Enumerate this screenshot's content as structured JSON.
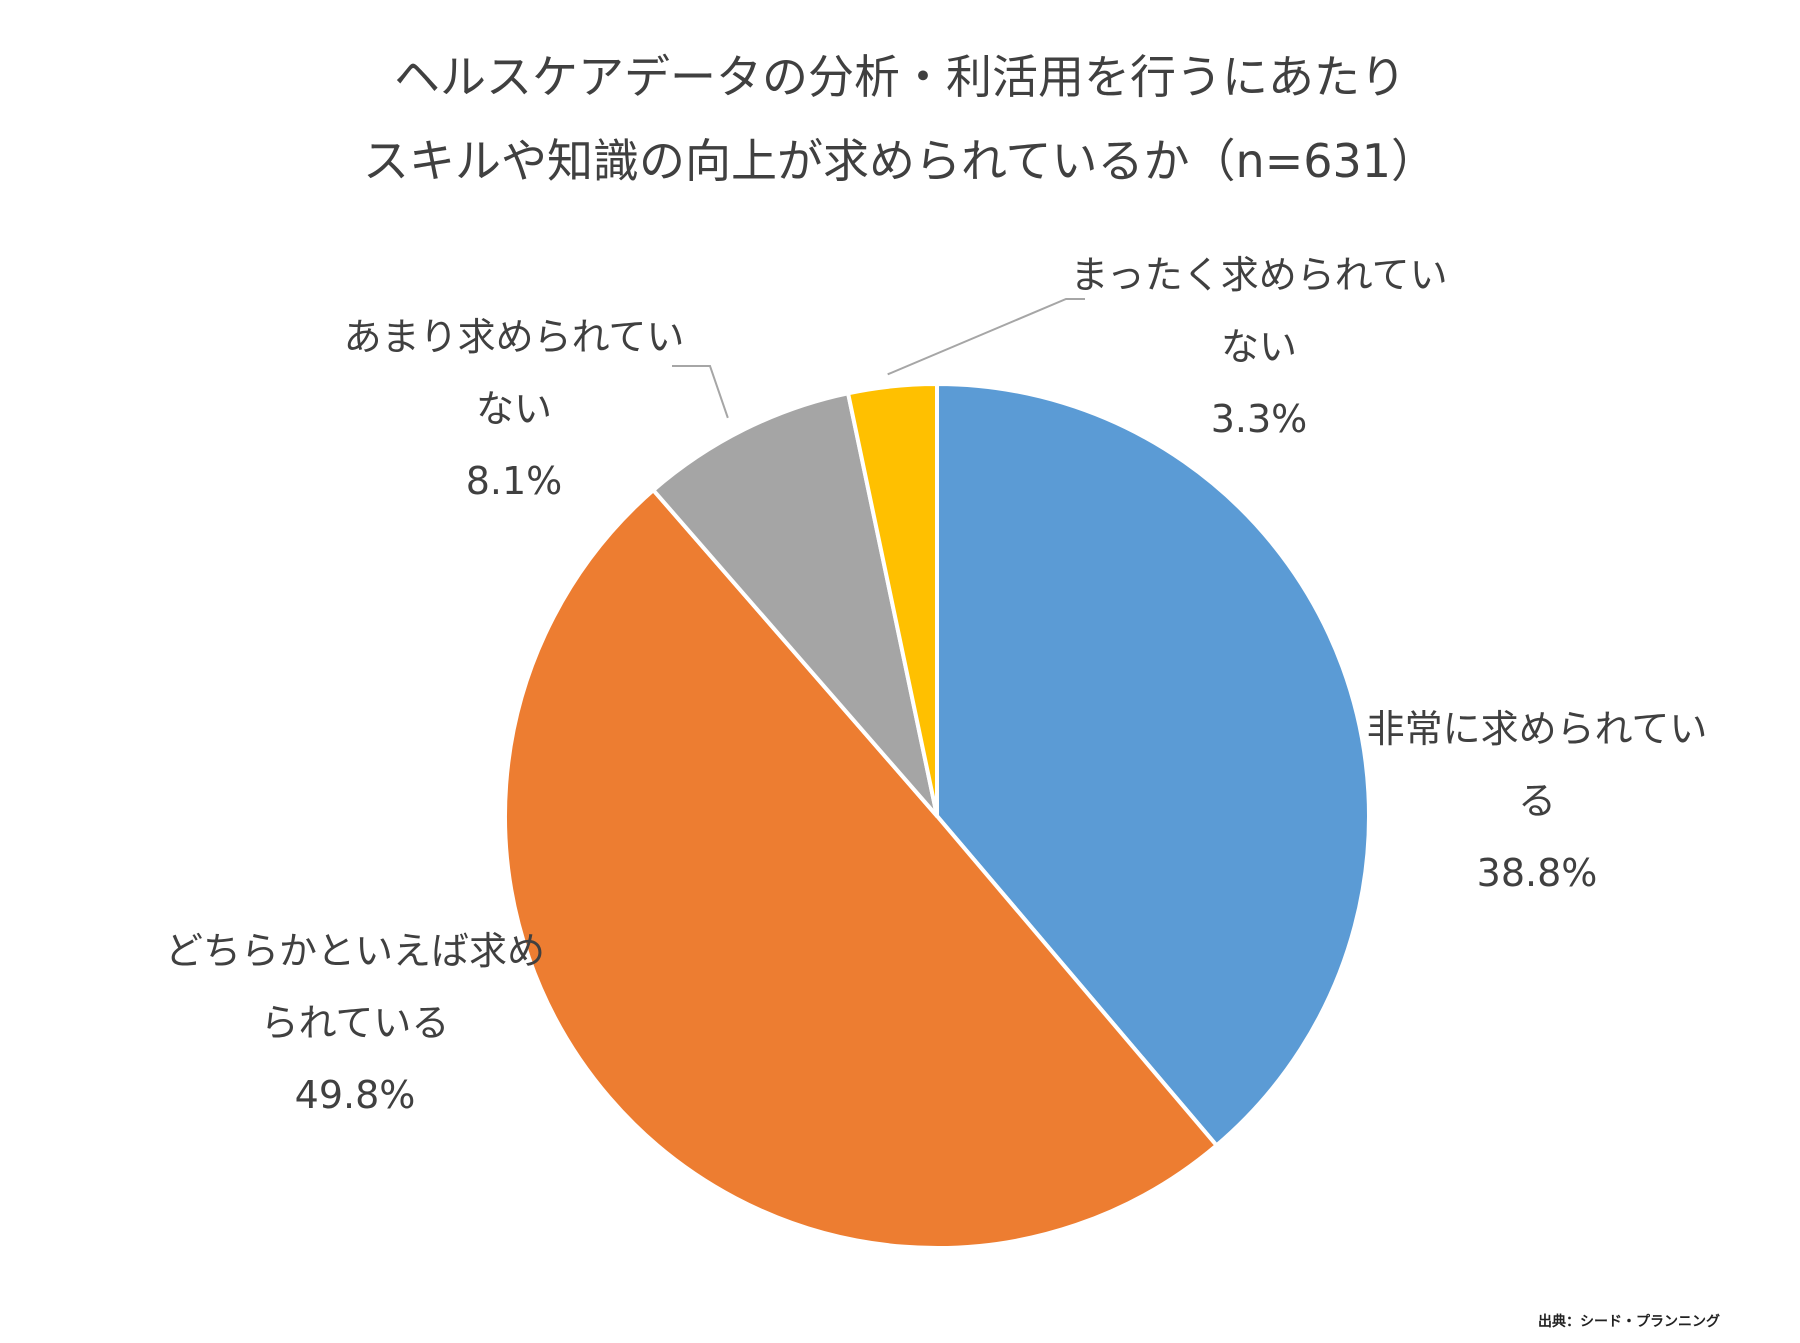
{
  "chart_data": {
    "type": "pie",
    "title_lines": [
      "ヘルスケアデータの分析・利活用を行うにあたり",
      "スキルや知識の向上が求められているか（n=631）"
    ],
    "slices": [
      {
        "label_lines": [
          "非常に求められてい",
          "る"
        ],
        "value": 38.8,
        "value_text": "38.8%",
        "color": "#5B9BD5"
      },
      {
        "label_lines": [
          "どちらかといえば求め",
          "られている"
        ],
        "value": 49.8,
        "value_text": "49.8%",
        "color": "#ED7D31"
      },
      {
        "label_lines": [
          "あまり求められてい",
          "ない"
        ],
        "value": 8.1,
        "value_text": "8.1%",
        "color": "#A5A5A5"
      },
      {
        "label_lines": [
          "まったく求められてい",
          "ない"
        ],
        "value": 3.3,
        "value_text": "3.3%",
        "color": "#FFC000"
      }
    ],
    "start_angle": "12 o'clock",
    "direction": "clockwise"
  },
  "source": "出典：シード・プランニング"
}
